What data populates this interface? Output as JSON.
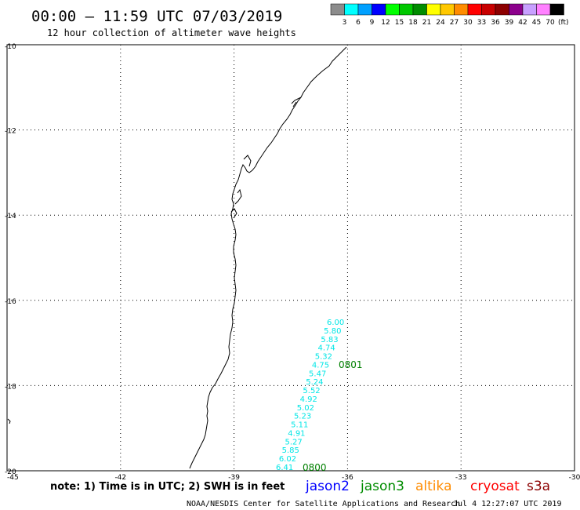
{
  "header": {
    "title": "00:00 – 11:59 UTC 07/03/2019",
    "subtitle": "12 hour collection of altimeter wave heights"
  },
  "legend": {
    "unit": "(ft)",
    "swatches": [
      {
        "label": "3",
        "color": "#8c8c8c"
      },
      {
        "label": "6",
        "color": "#00ffff"
      },
      {
        "label": "9",
        "color": "#00a0ff"
      },
      {
        "label": "12",
        "color": "#0000ff"
      },
      {
        "label": "15",
        "color": "#00ff00"
      },
      {
        "label": "18",
        "color": "#00c800"
      },
      {
        "label": "21",
        "color": "#008c00"
      },
      {
        "label": "24",
        "color": "#ffff00"
      },
      {
        "label": "27",
        "color": "#ffc800"
      },
      {
        "label": "30",
        "color": "#ff8c00"
      },
      {
        "label": "33",
        "color": "#ff0000"
      },
      {
        "label": "36",
        "color": "#c80000"
      },
      {
        "label": "39",
        "color": "#8c0000"
      },
      {
        "label": "42",
        "color": "#8c008c"
      },
      {
        "label": "45",
        "color": "#c8a0ff"
      },
      {
        "label": "70",
        "color": "#ff80ff"
      },
      {
        "label": "",
        "color": "#000000"
      }
    ]
  },
  "axes": {
    "lat_labels": [
      "-10",
      "-12",
      "-14",
      "-16",
      "-18",
      "-20"
    ],
    "lon_labels": [
      "-45",
      "-42",
      "-39",
      "-36",
      "-33",
      "-30"
    ]
  },
  "track": {
    "color": "#00e6e6",
    "label_color": "#008000",
    "swh_values": [
      "6.00",
      "5.80",
      "5.83",
      "4.74",
      "5.32",
      "4.75",
      "5.47",
      "5.24",
      "5.52",
      "4.92",
      "5.02",
      "5.23",
      "5.11",
      "4.91",
      "5.27",
      "5.85",
      "6.02",
      "6.41"
    ],
    "time_labels": [
      "0801",
      "0800"
    ]
  },
  "footer": {
    "note": "note:  1) Time is in UTC;  2) SWH is in feet",
    "satellites": [
      {
        "name": "jason2",
        "color": "#0000ff"
      },
      {
        "name": "jason3",
        "color": "#008c00"
      },
      {
        "name": "altika",
        "color": "#ff8c00"
      },
      {
        "name": "cryosat",
        "color": "#ff0000"
      },
      {
        "name": "s3a",
        "color": "#8c0000"
      }
    ],
    "credit": "NOAA/NESDIS Center for Satellite Applications and Research",
    "timestamp": "Jul  4 12:27:07 UTC 2019"
  }
}
